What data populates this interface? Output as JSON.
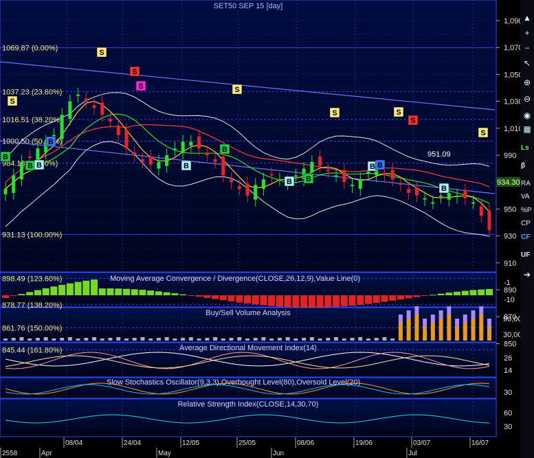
{
  "chart_title": "SET50 SEP 15   [day]",
  "colors": {
    "background": "#000000",
    "price_panel_top": "#000c40",
    "grid": "#1d3fc4",
    "fib_line": "#3a3aff",
    "trend_line": "#6f74ff",
    "candle_up": "#27e327",
    "candle_down": "#ee2222",
    "macd_pos": "#7de621",
    "macd_neg": "#ee2424",
    "rsi": "#22d4ee",
    "buy_signal": "#1fcf43",
    "buy_signal_alt": "#aaeeff",
    "sell_signal": "#ffea80",
    "sell_signal_red": "#ff3030",
    "sell_signal_magenta": "#ff22dd"
  },
  "fib_levels": [
    {
      "label": "1069.87 (0.00%)",
      "value": 1069.87
    },
    {
      "label": "1037.23 (23.60%)",
      "value": 1037.23
    },
    {
      "label": "1016.51 (38.20%)",
      "value": 1016.51
    },
    {
      "label": "1000.50 (50.00%)",
      "value": 1000.5
    },
    {
      "label": "984.18 (61.80%)",
      "value": 984.18
    },
    {
      "label": "931.13 (100.00%)",
      "value": 931.13
    },
    {
      "label": "898.49 (123.60%)",
      "value": 898.49
    },
    {
      "label": "878.77 (138.20%)",
      "value": 878.77
    },
    {
      "label": "861.76 (150.00%)",
      "value": 861.76
    },
    {
      "label": "845.44 (161.80%)",
      "value": 845.44
    }
  ],
  "price_axis_ticks": [
    "1,090",
    "1,070",
    "1,050",
    "1,030",
    "1,010",
    "990",
    "970",
    "950",
    "930",
    "910",
    "890",
    "870",
    "850"
  ],
  "last_price": "934.30",
  "annotation_low": "951.09",
  "signals": [
    {
      "type": "S",
      "style": "sell"
    },
    {
      "type": "S",
      "style": "sell"
    },
    {
      "type": "S",
      "style": "sell-red"
    },
    {
      "type": "S",
      "style": "sell-magenta"
    },
    {
      "type": "S",
      "style": "sell"
    },
    {
      "type": "S",
      "style": "sell"
    },
    {
      "type": "S",
      "style": "sell"
    },
    {
      "type": "S",
      "style": "sell-red"
    },
    {
      "type": "S",
      "style": "sell"
    },
    {
      "type": "B",
      "style": "buy"
    },
    {
      "type": "B",
      "style": "buy"
    },
    {
      "type": "B",
      "style": "buy-alt"
    },
    {
      "type": "B",
      "style": "buy-blue"
    },
    {
      "type": "B",
      "style": "buy-alt"
    },
    {
      "type": "B",
      "style": "buy"
    },
    {
      "type": "B",
      "style": "buy-alt"
    },
    {
      "type": "B",
      "style": "buy"
    },
    {
      "type": "B",
      "style": "buy-alt"
    },
    {
      "type": "B",
      "style": "buy-blue"
    },
    {
      "type": "B",
      "style": "buy-alt"
    }
  ],
  "panels": {
    "macd": {
      "title": "Moving Average Convergence / Divergence(CLOSE,26,12,9),Value Line(0)",
      "ticks": [
        "-1",
        "-10"
      ]
    },
    "volume": {
      "title": "Buy/Sell Volume Analysis",
      "ticks": [
        "90,00",
        "30,00"
      ]
    },
    "adx": {
      "title": "Average Directional Movement Index(14)",
      "ticks": [
        "26",
        "14"
      ]
    },
    "stoch": {
      "title": "Slow Stochastics Oscillator(9,3,3),Overbought Level(80),Oversold Level(20)",
      "ticks": [
        "30"
      ]
    },
    "rsi": {
      "title": "Relative Strength Index(CLOSE,14,30,70)",
      "ticks": [
        "60",
        "30"
      ]
    }
  },
  "date_axis": {
    "dates": [
      "08/04",
      "24/04",
      "12/05",
      "25/05",
      "08/06",
      "19/06",
      "03/07",
      "16/07"
    ],
    "months": [
      "2558",
      "Apr",
      "May",
      "Jun",
      "Jul"
    ]
  },
  "toolbar": {
    "icons": [
      "arrow-up-icon",
      "plus-icon",
      "minus-icon",
      "cursor-icon",
      "zoom-in-icon",
      "zoom-out-icon",
      "eye-icon",
      "stats-icon",
      "arrow-icon"
    ],
    "labels": [
      "Ls",
      "β",
      "RA",
      "VA",
      "%P",
      "CP",
      "CF",
      "UF"
    ]
  },
  "chart_data": {
    "type": "line",
    "title": "SET50 SEP 15   [day]",
    "price_range": [
      836,
      1098
    ],
    "close_series_approx": [
      965,
      975,
      985,
      988,
      995,
      1000,
      1005,
      1020,
      1030,
      1035,
      1030,
      1025,
      1020,
      1015,
      1005,
      995,
      990,
      985,
      983,
      985,
      990,
      995,
      1000,
      1000,
      995,
      990,
      985,
      975,
      970,
      965,
      960,
      968,
      972,
      975,
      972,
      970,
      975,
      980,
      985,
      982,
      978,
      975,
      970,
      968,
      972,
      978,
      980,
      975,
      972,
      968,
      962,
      960,
      958,
      955,
      960,
      962,
      960,
      958,
      955,
      945,
      934.3
    ]
  }
}
